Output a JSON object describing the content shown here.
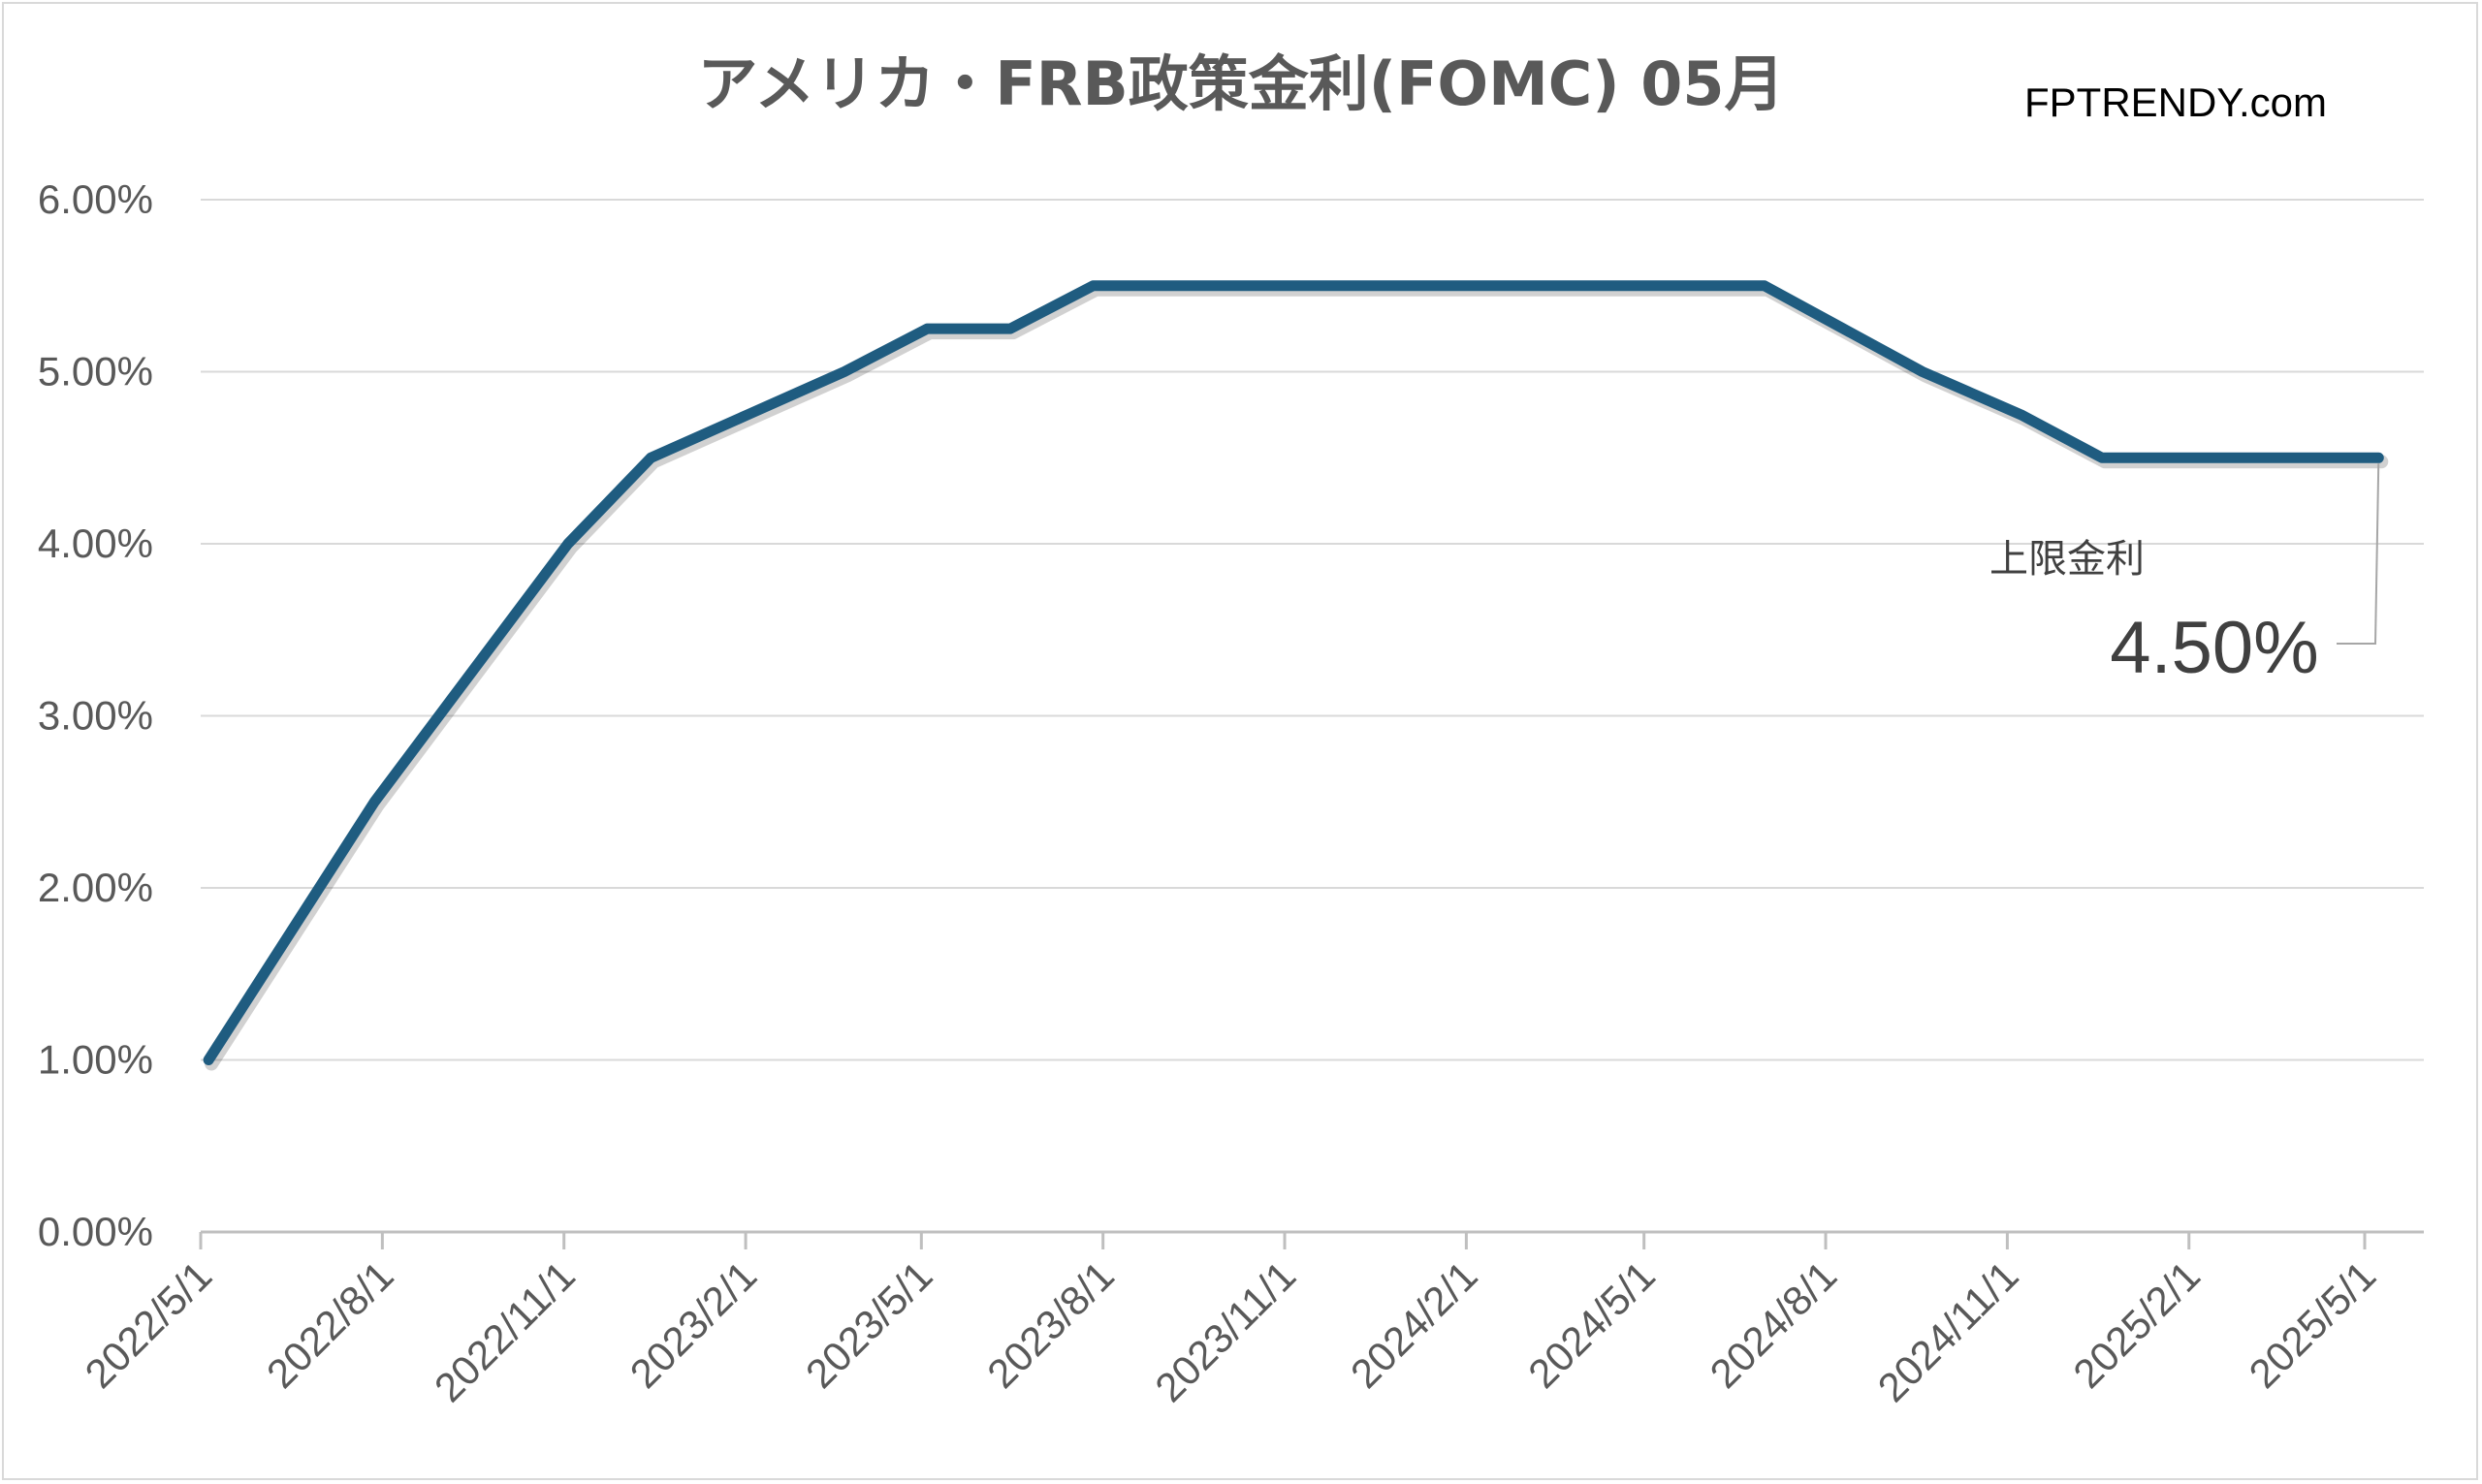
{
  "chart_data": {
    "type": "line",
    "title": "アメリカ・FRB政策金利(FOMC)  05月",
    "watermark": "FPTRENDY.com",
    "xlabel": "",
    "ylabel": "",
    "ylim": [
      0,
      6
    ],
    "y_ticks": [
      "0.00%",
      "1.00%",
      "2.00%",
      "3.00%",
      "4.00%",
      "5.00%",
      "6.00%"
    ],
    "x_ticks": [
      "2022/5/1",
      "2022/8/1",
      "2022/11/1",
      "2023/2/1",
      "2023/5/1",
      "2023/8/1",
      "2023/11/1",
      "2024/2/1",
      "2024/5/1",
      "2024/8/1",
      "2024/11/1",
      "2025/2/1",
      "2025/5/1"
    ],
    "grid": true,
    "line_color": "#1f5c80",
    "series": [
      {
        "name": "",
        "points": [
          {
            "date": "2022-05-05",
            "value": 1.0
          },
          {
            "date": "2022-07-28",
            "value": 2.5
          },
          {
            "date": "2022-11-03",
            "value": 4.0
          },
          {
            "date": "2022-12-15",
            "value": 4.5
          },
          {
            "date": "2023-02-02",
            "value": 4.75
          },
          {
            "date": "2023-03-23",
            "value": 5.0
          },
          {
            "date": "2023-05-04",
            "value": 5.25
          },
          {
            "date": "2023-06-15",
            "value": 5.25
          },
          {
            "date": "2023-07-27",
            "value": 5.5
          },
          {
            "date": "2024-07-01",
            "value": 5.5
          },
          {
            "date": "2024-09-19",
            "value": 5.0
          },
          {
            "date": "2024-11-08",
            "value": 4.75
          },
          {
            "date": "2024-12-19",
            "value": 4.5
          },
          {
            "date": "2025-05-08",
            "value": 4.5
          }
        ]
      }
    ],
    "annotation": {
      "label": "上限金利",
      "value": "4.50%"
    }
  }
}
